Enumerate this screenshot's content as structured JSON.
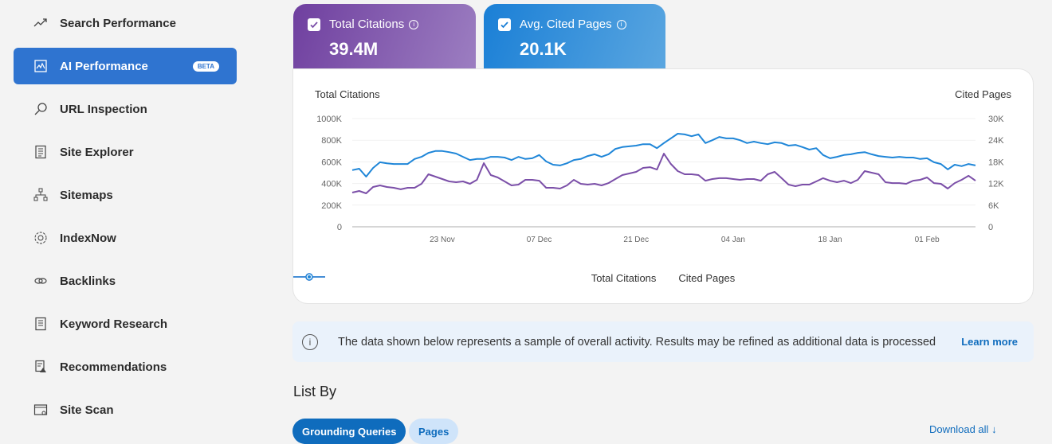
{
  "sidebar": {
    "items": [
      {
        "label": "Search Performance",
        "icon": "trending-up-icon"
      },
      {
        "label": "AI Performance",
        "icon": "ai-chart-icon",
        "badge": "BETA",
        "active": true
      },
      {
        "label": "URL Inspection",
        "icon": "search-icon"
      },
      {
        "label": "Site Explorer",
        "icon": "document-list-icon"
      },
      {
        "label": "Sitemaps",
        "icon": "sitemap-icon"
      },
      {
        "label": "IndexNow",
        "icon": "gear-icon"
      },
      {
        "label": "Backlinks",
        "icon": "link-icon"
      },
      {
        "label": "Keyword Research",
        "icon": "document-icon"
      },
      {
        "label": "Recommendations",
        "icon": "document-warning-icon"
      },
      {
        "label": "Site Scan",
        "icon": "window-scan-icon"
      }
    ]
  },
  "metrics": {
    "citations": {
      "label": "Total Citations",
      "value": "39.4M",
      "checked": true,
      "color": "#7b4fa8"
    },
    "pages": {
      "label": "Avg. Cited Pages",
      "value": "20.1K",
      "checked": true,
      "color": "#1a7fd6"
    }
  },
  "chart_data": {
    "type": "line",
    "left_axis_title": "Total Citations",
    "right_axis_title": "Cited Pages",
    "left_ylim": [
      0,
      1000000
    ],
    "right_ylim": [
      0,
      30000
    ],
    "left_ticks": [
      "0",
      "200K",
      "400K",
      "600K",
      "800K",
      "1000K"
    ],
    "right_ticks": [
      "0",
      "6K",
      "12K",
      "18K",
      "24K",
      "30K"
    ],
    "x_tick_labels": [
      "23 Nov",
      "07 Dec",
      "21 Dec",
      "04 Jan",
      "18 Jan",
      "01 Feb"
    ],
    "grid": true,
    "legend_position": "bottom",
    "x": [
      "10 Nov",
      "11 Nov",
      "12 Nov",
      "13 Nov",
      "14 Nov",
      "15 Nov",
      "16 Nov",
      "17 Nov",
      "18 Nov",
      "19 Nov",
      "20 Nov",
      "21 Nov",
      "22 Nov",
      "23 Nov",
      "24 Nov",
      "25 Nov",
      "26 Nov",
      "27 Nov",
      "28 Nov",
      "29 Nov",
      "30 Nov",
      "01 Dec",
      "02 Dec",
      "03 Dec",
      "04 Dec",
      "05 Dec",
      "06 Dec",
      "07 Dec",
      "08 Dec",
      "09 Dec",
      "10 Dec",
      "11 Dec",
      "12 Dec",
      "13 Dec",
      "14 Dec",
      "15 Dec",
      "16 Dec",
      "17 Dec",
      "18 Dec",
      "19 Dec",
      "20 Dec",
      "21 Dec",
      "22 Dec",
      "23 Dec",
      "24 Dec",
      "25 Dec",
      "26 Dec",
      "27 Dec",
      "28 Dec",
      "29 Dec",
      "30 Dec",
      "31 Dec",
      "01 Jan",
      "02 Jan",
      "03 Jan",
      "04 Jan",
      "05 Jan",
      "06 Jan",
      "07 Jan",
      "08 Jan",
      "09 Jan",
      "10 Jan",
      "11 Jan",
      "12 Jan",
      "13 Jan",
      "14 Jan",
      "15 Jan",
      "16 Jan",
      "17 Jan",
      "18 Jan",
      "19 Jan",
      "20 Jan",
      "21 Jan",
      "22 Jan",
      "23 Jan",
      "24 Jan",
      "25 Jan",
      "26 Jan",
      "27 Jan",
      "28 Jan",
      "29 Jan",
      "30 Jan",
      "31 Jan",
      "01 Feb",
      "02 Feb",
      "03 Feb",
      "04 Feb",
      "05 Feb",
      "06 Feb",
      "07 Feb",
      "08 Feb"
    ],
    "series": [
      {
        "name": "Total Citations",
        "axis": "left",
        "color": "#7b4fa8",
        "values": [
          316000,
          331000,
          309000,
          368000,
          382000,
          368000,
          360000,
          346000,
          360000,
          360000,
          397000,
          485000,
          463000,
          441000,
          419000,
          412000,
          419000,
          397000,
          434000,
          588000,
          478000,
          456000,
          419000,
          382000,
          390000,
          434000,
          434000,
          426000,
          360000,
          360000,
          353000,
          382000,
          434000,
          397000,
          390000,
          397000,
          382000,
          404000,
          441000,
          478000,
          493000,
          507000,
          544000,
          551000,
          529000,
          676000,
          581000,
          515000,
          485000,
          485000,
          478000,
          426000,
          441000,
          449000,
          449000,
          441000,
          434000,
          441000,
          441000,
          426000,
          485000,
          507000,
          449000,
          390000,
          375000,
          390000,
          390000,
          419000,
          449000,
          426000,
          412000,
          426000,
          404000,
          434000,
          515000,
          500000,
          485000,
          412000,
          404000,
          404000,
          397000,
          426000,
          434000,
          456000,
          404000,
          397000,
          353000,
          404000,
          434000,
          471000,
          426000
        ]
      },
      {
        "name": "Cited Pages",
        "axis": "right",
        "color": "#1f86d8",
        "values": [
          15700,
          16100,
          13900,
          16300,
          17900,
          17600,
          17400,
          17400,
          17400,
          18800,
          19400,
          20500,
          21000,
          21000,
          20700,
          20300,
          19400,
          18500,
          18800,
          18800,
          19400,
          19400,
          19200,
          18500,
          19400,
          18800,
          19000,
          19900,
          18100,
          17200,
          17000,
          17600,
          18500,
          18800,
          19600,
          20100,
          19400,
          20100,
          21600,
          22100,
          22300,
          22500,
          22900,
          22900,
          21800,
          23200,
          24500,
          25800,
          25600,
          25100,
          25600,
          23200,
          24000,
          24900,
          24500,
          24500,
          24000,
          23200,
          23600,
          23200,
          22900,
          23400,
          23200,
          22500,
          22700,
          22100,
          21400,
          21800,
          19900,
          19000,
          19400,
          19900,
          20100,
          20500,
          20700,
          20100,
          19600,
          19400,
          19200,
          19400,
          19200,
          19200,
          18800,
          19000,
          17900,
          17400,
          15900,
          17200,
          16800,
          17400,
          17000
        ]
      }
    ]
  },
  "banner": {
    "text": "The data shown below represents a sample of overall activity. Results may be refined as additional data is processed",
    "link": "Learn more"
  },
  "list": {
    "title": "List By",
    "tabs": [
      "Grounding Queries",
      "Pages"
    ],
    "download": "Download all"
  }
}
